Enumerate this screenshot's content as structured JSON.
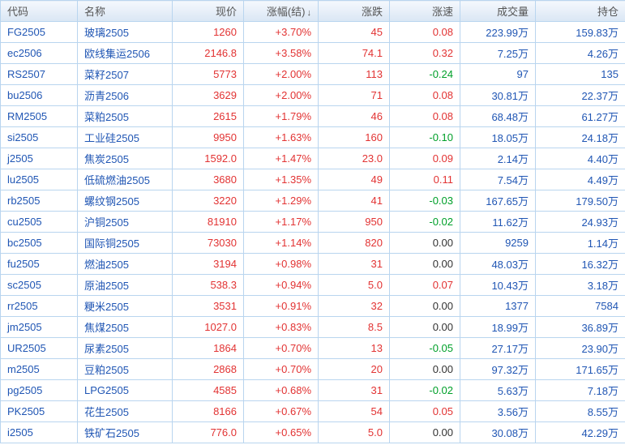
{
  "colors": {
    "up_red": "#e23333",
    "down_green": "#00a02a",
    "neutral_black": "#333333",
    "link_blue": "#2056b4",
    "grid_line": "#b9d5ef",
    "header_bg_top": "#f4f8fd",
    "header_bg_bottom": "#dae6f4",
    "header_text": "#555555"
  },
  "table": {
    "sorted_by": "pct",
    "sort_arrow": "↓",
    "columns": [
      {
        "key": "code",
        "label": "代码",
        "align": "left"
      },
      {
        "key": "name",
        "label": "名称",
        "align": "left"
      },
      {
        "key": "price",
        "label": "现价",
        "align": "right"
      },
      {
        "key": "pct",
        "label": "涨幅(结)",
        "align": "right"
      },
      {
        "key": "chg",
        "label": "涨跌",
        "align": "right"
      },
      {
        "key": "speed",
        "label": "涨速",
        "align": "right"
      },
      {
        "key": "vol",
        "label": "成交量",
        "align": "right"
      },
      {
        "key": "oi",
        "label": "持仓",
        "align": "right"
      }
    ],
    "rows": [
      {
        "code": "FG2505",
        "name": "玻璃2505",
        "price": "1260",
        "pct": "+3.70%",
        "chg": "45",
        "speed": "0.08",
        "vol": "223.99万",
        "oi": "159.83万"
      },
      {
        "code": "ec2506",
        "name": "欧线集运2506",
        "price": "2146.8",
        "pct": "+3.58%",
        "chg": "74.1",
        "speed": "0.32",
        "vol": "7.25万",
        "oi": "4.26万"
      },
      {
        "code": "RS2507",
        "name": "菜籽2507",
        "price": "5773",
        "pct": "+2.00%",
        "chg": "113",
        "speed": "-0.24",
        "vol": "97",
        "oi": "135"
      },
      {
        "code": "bu2506",
        "name": "沥青2506",
        "price": "3629",
        "pct": "+2.00%",
        "chg": "71",
        "speed": "0.08",
        "vol": "30.81万",
        "oi": "22.37万"
      },
      {
        "code": "RM2505",
        "name": "菜粕2505",
        "price": "2615",
        "pct": "+1.79%",
        "chg": "46",
        "speed": "0.08",
        "vol": "68.48万",
        "oi": "61.27万"
      },
      {
        "code": "si2505",
        "name": "工业硅2505",
        "price": "9950",
        "pct": "+1.63%",
        "chg": "160",
        "speed": "-0.10",
        "vol": "18.05万",
        "oi": "24.18万"
      },
      {
        "code": "j2505",
        "name": "焦炭2505",
        "price": "1592.0",
        "pct": "+1.47%",
        "chg": "23.0",
        "speed": "0.09",
        "vol": "2.14万",
        "oi": "4.40万"
      },
      {
        "code": "lu2505",
        "name": "低硫燃油2505",
        "price": "3680",
        "pct": "+1.35%",
        "chg": "49",
        "speed": "0.11",
        "vol": "7.54万",
        "oi": "4.49万"
      },
      {
        "code": "rb2505",
        "name": "螺纹钢2505",
        "price": "3220",
        "pct": "+1.29%",
        "chg": "41",
        "speed": "-0.03",
        "vol": "167.65万",
        "oi": "179.50万"
      },
      {
        "code": "cu2505",
        "name": "沪铜2505",
        "price": "81910",
        "pct": "+1.17%",
        "chg": "950",
        "speed": "-0.02",
        "vol": "11.62万",
        "oi": "24.93万"
      },
      {
        "code": "bc2505",
        "name": "国际铜2505",
        "price": "73030",
        "pct": "+1.14%",
        "chg": "820",
        "speed": "0.00",
        "vol": "9259",
        "oi": "1.14万"
      },
      {
        "code": "fu2505",
        "name": "燃油2505",
        "price": "3194",
        "pct": "+0.98%",
        "chg": "31",
        "speed": "0.00",
        "vol": "48.03万",
        "oi": "16.32万"
      },
      {
        "code": "sc2505",
        "name": "原油2505",
        "price": "538.3",
        "pct": "+0.94%",
        "chg": "5.0",
        "speed": "0.07",
        "vol": "10.43万",
        "oi": "3.18万"
      },
      {
        "code": "rr2505",
        "name": "粳米2505",
        "price": "3531",
        "pct": "+0.91%",
        "chg": "32",
        "speed": "0.00",
        "vol": "1377",
        "oi": "7584"
      },
      {
        "code": "jm2505",
        "name": "焦煤2505",
        "price": "1027.0",
        "pct": "+0.83%",
        "chg": "8.5",
        "speed": "0.00",
        "vol": "18.99万",
        "oi": "36.89万"
      },
      {
        "code": "UR2505",
        "name": "尿素2505",
        "price": "1864",
        "pct": "+0.70%",
        "chg": "13",
        "speed": "-0.05",
        "vol": "27.17万",
        "oi": "23.90万"
      },
      {
        "code": "m2505",
        "name": "豆粕2505",
        "price": "2868",
        "pct": "+0.70%",
        "chg": "20",
        "speed": "0.00",
        "vol": "97.32万",
        "oi": "171.65万"
      },
      {
        "code": "pg2505",
        "name": "LPG2505",
        "price": "4585",
        "pct": "+0.68%",
        "chg": "31",
        "speed": "-0.02",
        "vol": "5.63万",
        "oi": "7.18万"
      },
      {
        "code": "PK2505",
        "name": "花生2505",
        "price": "8166",
        "pct": "+0.67%",
        "chg": "54",
        "speed": "0.05",
        "vol": "3.56万",
        "oi": "8.55万"
      },
      {
        "code": "i2505",
        "name": "铁矿石2505",
        "price": "776.0",
        "pct": "+0.65%",
        "chg": "5.0",
        "speed": "0.00",
        "vol": "30.08万",
        "oi": "42.29万"
      }
    ]
  }
}
